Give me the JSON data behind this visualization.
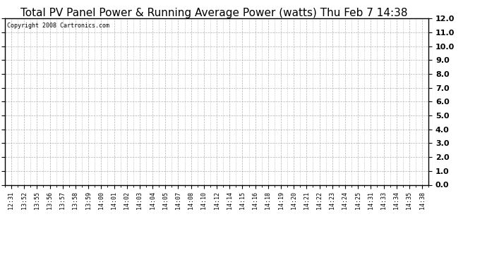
{
  "title": "Total PV Panel Power & Running Average Power (watts) Thu Feb 7 14:38",
  "copyright_text": "Copyright 2008 Cartronics.com",
  "x_labels": [
    "12:31",
    "13:52",
    "13:55",
    "13:56",
    "13:57",
    "13:58",
    "13:59",
    "14:00",
    "14:01",
    "14:02",
    "14:03",
    "14:04",
    "14:05",
    "14:07",
    "14:08",
    "14:10",
    "14:12",
    "14:14",
    "14:15",
    "14:16",
    "14:18",
    "14:19",
    "14:20",
    "14:21",
    "14:22",
    "14:23",
    "14:24",
    "14:25",
    "14:31",
    "14:33",
    "14:34",
    "14:35",
    "14:38"
  ],
  "ylim": [
    0.0,
    12.0
  ],
  "yticks": [
    0.0,
    1.0,
    2.0,
    3.0,
    4.0,
    5.0,
    6.0,
    7.0,
    8.0,
    9.0,
    10.0,
    11.0,
    12.0
  ],
  "background_color": "#ffffff",
  "plot_bg_color": "#ffffff",
  "grid_color": "#aaaaaa",
  "title_fontsize": 11,
  "copyright_fontsize": 6,
  "tick_fontsize": 6,
  "border_color": "#000000"
}
